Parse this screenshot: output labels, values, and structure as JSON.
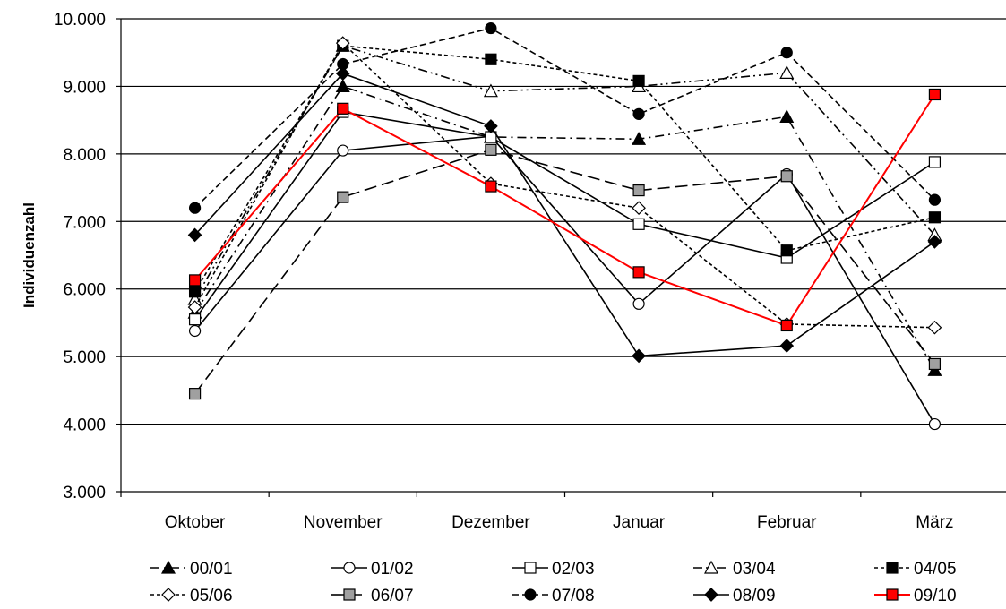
{
  "chart_data": {
    "type": "line",
    "ylabel": "Individuenzahl",
    "xlabel": "",
    "categories": [
      "Oktober",
      "November",
      "Dezember",
      "Januar",
      "Februar",
      "März"
    ],
    "ylim": [
      3000,
      10000
    ],
    "yticks": [
      3000,
      4000,
      5000,
      6000,
      7000,
      8000,
      9000,
      10000
    ],
    "ytick_labels": [
      "3.000",
      "4.000",
      "5.000",
      "6.000",
      "7.000",
      "8.000",
      "9.000",
      "10.000"
    ],
    "grid": "horizontal",
    "legend_position": "bottom",
    "series": [
      {
        "name": "00/01",
        "values": [
          5650,
          9000,
          8250,
          8220,
          8550,
          4800
        ],
        "color": "#000000",
        "dash": "10,5,2,5",
        "marker": "triangle",
        "fill": "#000000"
      },
      {
        "name": "01/02",
        "values": [
          5380,
          8050,
          8260,
          5780,
          7700,
          4000
        ],
        "color": "#000000",
        "dash": "",
        "marker": "circle",
        "fill": "#ffffff"
      },
      {
        "name": "02/03",
        "values": [
          5550,
          8620,
          8250,
          6960,
          6460,
          7880
        ],
        "color": "#000000",
        "dash": "",
        "marker": "square",
        "fill": "#ffffff"
      },
      {
        "name": "03/04",
        "values": [
          5850,
          9600,
          8930,
          9000,
          9200,
          6800
        ],
        "color": "#000000",
        "dash": "10,4,2,4,2,4",
        "marker": "triangle",
        "fill": "#ffffff"
      },
      {
        "name": "04/05",
        "values": [
          5960,
          9600,
          9400,
          9080,
          6570,
          7060
        ],
        "color": "#000000",
        "dash": "4,3",
        "marker": "square",
        "fill": "#000000"
      },
      {
        "name": "05/06",
        "values": [
          5730,
          9640,
          7560,
          7200,
          5480,
          5430
        ],
        "color": "#000000",
        "dash": "4,3",
        "marker": "diamond",
        "fill": "#ffffff"
      },
      {
        "name": "06/07",
        "values": [
          4450,
          7360,
          8060,
          7460,
          7670,
          4890
        ],
        "color": "#000000",
        "dash": "14,6",
        "marker": "square",
        "fill": "#a0a0a0"
      },
      {
        "name": "07/08",
        "values": [
          7200,
          9330,
          9860,
          8590,
          9500,
          7320
        ],
        "color": "#000000",
        "dash": "7,4",
        "marker": "circle",
        "fill": "#000000"
      },
      {
        "name": "08/09",
        "values": [
          6800,
          9190,
          8410,
          5010,
          5160,
          6700
        ],
        "color": "#000000",
        "dash": "",
        "marker": "diamond",
        "fill": "#000000"
      },
      {
        "name": "09/10",
        "values": [
          6130,
          8670,
          7520,
          6250,
          5460,
          8880
        ],
        "color": "#ff0000",
        "dash": "",
        "marker": "square",
        "fill": "#ff0000"
      }
    ]
  }
}
